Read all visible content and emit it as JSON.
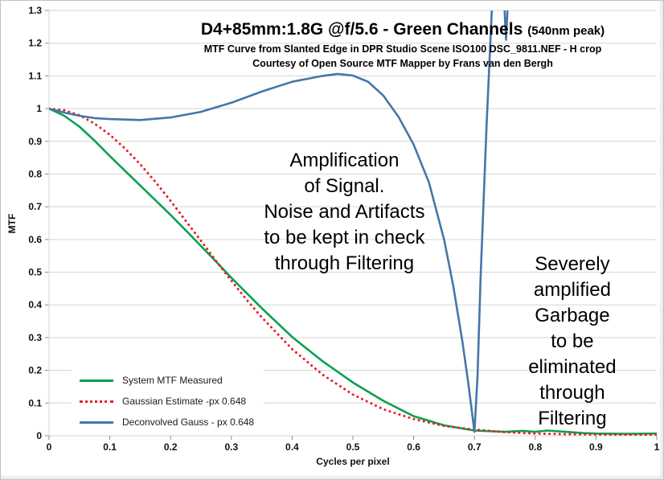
{
  "chart_data": {
    "type": "line",
    "title_main": "D4+85mm:1.8G @f/5.6 - Green Channels",
    "title_paren": "(540nm peak)",
    "subtitle1": "MTF Curve from Slanted Edge in DPR Studio Scene ISO100 DSC_9811.NEF - H crop",
    "subtitle2": "Courtesy of Open Source MTF Mapper by Frans van den Bergh",
    "xlabel": "Cycles per pixel",
    "ylabel": "MTF",
    "xlim": [
      0,
      1
    ],
    "ylim": [
      0,
      1.3
    ],
    "x_ticks": [
      "0",
      "0.1",
      "0.2",
      "0.3",
      "0.4",
      "0.5",
      "0.6",
      "0.7",
      "0.8",
      "0.9",
      "1"
    ],
    "y_ticks": [
      "0",
      "0.1",
      "0.2",
      "0.3",
      "0.4",
      "0.5",
      "0.6",
      "0.7",
      "0.8",
      "0.9",
      "1",
      "1.1",
      "1.2",
      "1.3"
    ],
    "grid": "horizontal",
    "legend_position": "inside-bottom-left",
    "colors": {
      "grid": "#d5d5d5",
      "tick": "#8c8c8c",
      "green": "#0aa04e",
      "red": "#e32128",
      "blue": "#4576a9"
    },
    "series": [
      {
        "name": "System MTF Measured",
        "color": "#0aa04e",
        "style": "solid",
        "x": [
          0,
          0.025,
          0.05,
          0.075,
          0.1,
          0.125,
          0.15,
          0.175,
          0.2,
          0.225,
          0.25,
          0.275,
          0.3,
          0.35,
          0.4,
          0.45,
          0.5,
          0.55,
          0.6,
          0.65,
          0.7,
          0.75,
          0.78,
          0.8,
          0.82,
          0.85,
          0.88,
          0.9,
          0.95,
          1
        ],
        "y": [
          1,
          0.978,
          0.945,
          0.902,
          0.855,
          0.81,
          0.765,
          0.72,
          0.675,
          0.628,
          0.58,
          0.532,
          0.483,
          0.39,
          0.302,
          0.228,
          0.163,
          0.107,
          0.06,
          0.032,
          0.016,
          0.012,
          0.015,
          0.012,
          0.016,
          0.012,
          0.008,
          0.007,
          0.006,
          0.007
        ]
      },
      {
        "name": "Gaussian Estimate -px 0.648",
        "color": "#e32128",
        "style": "dotted",
        "x": [
          0,
          0.025,
          0.05,
          0.075,
          0.1,
          0.125,
          0.15,
          0.175,
          0.2,
          0.225,
          0.25,
          0.275,
          0.3,
          0.325,
          0.35,
          0.4,
          0.45,
          0.5,
          0.55,
          0.6,
          0.65,
          0.7,
          0.75,
          0.8,
          0.85,
          0.9,
          0.95,
          1
        ],
        "y": [
          1,
          0.995,
          0.98,
          0.954,
          0.92,
          0.878,
          0.83,
          0.776,
          0.718,
          0.657,
          0.596,
          0.534,
          0.474,
          0.416,
          0.362,
          0.265,
          0.187,
          0.126,
          0.081,
          0.051,
          0.03,
          0.019,
          0.011,
          0.007,
          0.005,
          0.004,
          0.003,
          0.003
        ]
      },
      {
        "name": "Deconvolved Gauss - px 0.648",
        "color": "#4576a9",
        "style": "solid",
        "x": [
          0,
          0.025,
          0.05,
          0.075,
          0.1,
          0.15,
          0.2,
          0.25,
          0.3,
          0.35,
          0.4,
          0.45,
          0.475,
          0.5,
          0.525,
          0.55,
          0.575,
          0.6,
          0.625,
          0.65,
          0.665,
          0.68,
          0.69,
          0.7,
          0.705,
          0.71,
          0.72,
          0.73,
          0.748,
          0.752,
          0.756
        ],
        "y": [
          1,
          0.988,
          0.978,
          0.971,
          0.968,
          0.965,
          0.973,
          0.99,
          1.018,
          1.052,
          1.082,
          1.1,
          1.106,
          1.101,
          1.082,
          1.04,
          0.975,
          0.89,
          0.775,
          0.6,
          0.46,
          0.29,
          0.16,
          0.012,
          0.18,
          0.48,
          0.95,
          1.36,
          1.36,
          1.21,
          1.36
        ]
      }
    ],
    "annotations": [
      {
        "text": "Amplification\nof Signal.\nNoise and Artifacts\nto be kept in check\nthrough Filtering",
        "x": 0.486,
        "y": 0.683
      },
      {
        "text": "Severely\namplified\nGarbage to be\neliminated\nthrough Filtering",
        "x": 0.861,
        "y": 0.288
      }
    ]
  }
}
